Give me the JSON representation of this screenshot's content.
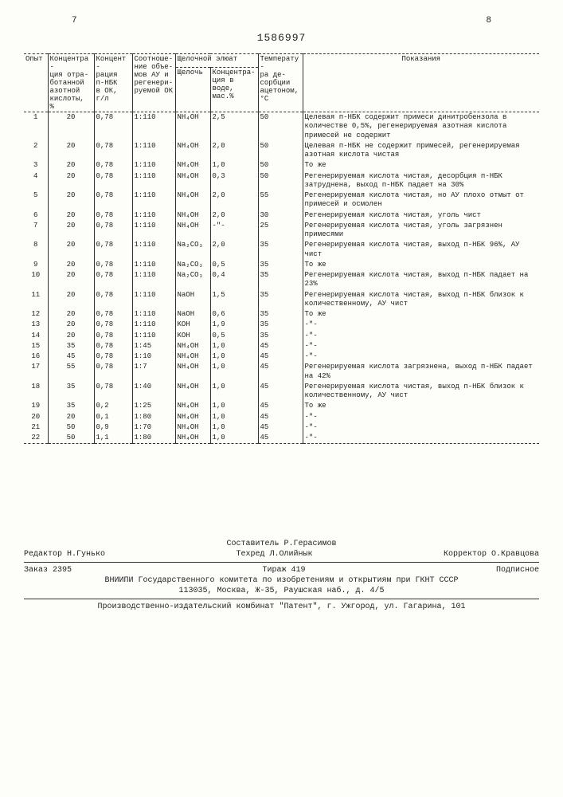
{
  "page_left": "7",
  "patent": "1586997",
  "page_right": "8",
  "headers": {
    "opyt": "Опыт",
    "conc1": "Концентра-\nция отра-\nботанной\nазотной\nкислоты, %",
    "conc2": "Концент-\nрация\nп-НБК\nв ОК,\nг/л",
    "ratio": "Соотноше-\nние объе-\nмов АУ и\nрегенери-\nруемой ОК",
    "alk_group": "Щелочной элюат",
    "alk": "Щелочь",
    "conc3": "Концентра-\nция в воде,\nмас.%",
    "temp": "Температу-\nра де-\nсорбции\nацетоном,\n°С",
    "pokaz": "Показания"
  },
  "rows": [
    {
      "n": "1",
      "c1": "20",
      "c2": "0,78",
      "r": "1:110",
      "a": "NH₄OH",
      "c3": "2,5",
      "t": "50",
      "p": "Целевая п-НБК содержит примеси динитробензола в количестве 0,5%, регенерируемая азотная кислота примесей не содержит"
    },
    {
      "n": "2",
      "c1": "20",
      "c2": "0,78",
      "r": "1:110",
      "a": "NH₄OH",
      "c3": "2,0",
      "t": "50",
      "p": "Целевая п-НБК не содержит примесей, регенерируемая азотная кислота чистая"
    },
    {
      "n": "3",
      "c1": "20",
      "c2": "0,78",
      "r": "1:110",
      "a": "NH₄OH",
      "c3": "1,0",
      "t": "50",
      "p": "То же"
    },
    {
      "n": "4",
      "c1": "20",
      "c2": "0,78",
      "r": "1:110",
      "a": "NH₄OH",
      "c3": "0,3",
      "t": "50",
      "p": "Регенерируемая кислота чистая, десорбция п-НБК затруднена, выход п-НБК падает на 30%"
    },
    {
      "n": "5",
      "c1": "20",
      "c2": "0,78",
      "r": "1:110",
      "a": "NH₄OH",
      "c3": "2,0",
      "t": "55",
      "p": "Регенерируемая кислота чистая, но АУ плохо отмыт от примесей и осмолен"
    },
    {
      "n": "6",
      "c1": "20",
      "c2": "0,78",
      "r": "1:110",
      "a": "NH₄OH",
      "c3": "2,0",
      "t": "30",
      "p": "Регенерируемая кислота чистая, уголь чист"
    },
    {
      "n": "7",
      "c1": "20",
      "c2": "0,78",
      "r": "1:110",
      "a": "NH₄OH",
      "c3": "-\"-",
      "t": "25",
      "p": "Регенерируемая кислота чистая, уголь загрязнен примесями"
    },
    {
      "n": "8",
      "c1": "20",
      "c2": "0,78",
      "r": "1:110",
      "a": "Na₂CO₃",
      "c3": "2,0",
      "t": "35",
      "p": "Регенерируемая кислота чистая, выход п-НБК 96%, АУ чист"
    },
    {
      "n": "9",
      "c1": "20",
      "c2": "0,78",
      "r": "1:110",
      "a": "Na₂CO₃",
      "c3": "0,5",
      "t": "35",
      "p": "То же"
    },
    {
      "n": "10",
      "c1": "20",
      "c2": "0,78",
      "r": "1:110",
      "a": "Na₂CO₃",
      "c3": "0,4",
      "t": "35",
      "p": "Регенерируемая кислота чистая, выход п-НБК падает на 23%"
    },
    {
      "n": "11",
      "c1": "20",
      "c2": "0,78",
      "r": "1:110",
      "a": "NaOH",
      "c3": "1,5",
      "t": "35",
      "p": "Регенерируемая кислота чистая, выход п-НБК близок к количественному, АУ чист"
    },
    {
      "n": "12",
      "c1": "20",
      "c2": "0,78",
      "r": "1:110",
      "a": "NaOH",
      "c3": "0,6",
      "t": "35",
      "p": "То же"
    },
    {
      "n": "13",
      "c1": "20",
      "c2": "0,78",
      "r": "1:110",
      "a": "KOH",
      "c3": "1,9",
      "t": "35",
      "p": "-\"-"
    },
    {
      "n": "14",
      "c1": "20",
      "c2": "0,78",
      "r": "1:110",
      "a": "KOH",
      "c3": "0,5",
      "t": "35",
      "p": "-\"-"
    },
    {
      "n": "15",
      "c1": "35",
      "c2": "0,78",
      "r": "1:45",
      "a": "NH₄OH",
      "c3": "1,0",
      "t": "45",
      "p": "-\"-"
    },
    {
      "n": "16",
      "c1": "45",
      "c2": "0,78",
      "r": "1:10",
      "a": "NH₄OH",
      "c3": "1,0",
      "t": "45",
      "p": "-\"-"
    },
    {
      "n": "17",
      "c1": "55",
      "c2": "0,78",
      "r": "1:7",
      "a": "NH₄OH",
      "c3": "1,0",
      "t": "45",
      "p": "Регенерируемая кислота загрязнена, выход п-НБК падает на 42%"
    },
    {
      "n": "18",
      "c1": "35",
      "c2": "0,78",
      "r": "1:40",
      "a": "NH₄OH",
      "c3": "1,0",
      "t": "45",
      "p": "Регенерируемая кислота чистая, выход п-НБК близок к количественному, АУ чист"
    },
    {
      "n": "19",
      "c1": "35",
      "c2": "0,2",
      "r": "1:25",
      "a": "NH₄OH",
      "c3": "1,0",
      "t": "45",
      "p": "То же"
    },
    {
      "n": "20",
      "c1": "20",
      "c2": "0,1",
      "r": "1:80",
      "a": "NH₄OH",
      "c3": "1,0",
      "t": "45",
      "p": "-\"-"
    },
    {
      "n": "21",
      "c1": "50",
      "c2": "0,9",
      "r": "1:70",
      "a": "NH₄OH",
      "c3": "1,0",
      "t": "45",
      "p": "-\"-"
    },
    {
      "n": "22",
      "c1": "50",
      "c2": "1,1",
      "r": "1:80",
      "a": "NH₄OH",
      "c3": "1,0",
      "t": "45",
      "p": "-\"-"
    }
  ],
  "footer": {
    "sostavitel": "Составитель Р.Герасимов",
    "redaktor": "Редактор Н.Гунько",
    "tehred": "Техред Л.Олийнык",
    "korrektor": "Корректор О.Кравцова",
    "zakaz": "Заказ 2395",
    "tirazh": "Тираж 419",
    "podpisnoe": "Подписное",
    "vniipi": "ВНИИПИ Государственного комитета по изобретениям и открытиям при ГКНТ СССР",
    "address": "113035, Москва, Ж-35, Раушская наб., д. 4/5",
    "proizv": "Производственно-издательский комбинат \"Патент\", г. Ужгород, ул. Гагарина, 101"
  }
}
